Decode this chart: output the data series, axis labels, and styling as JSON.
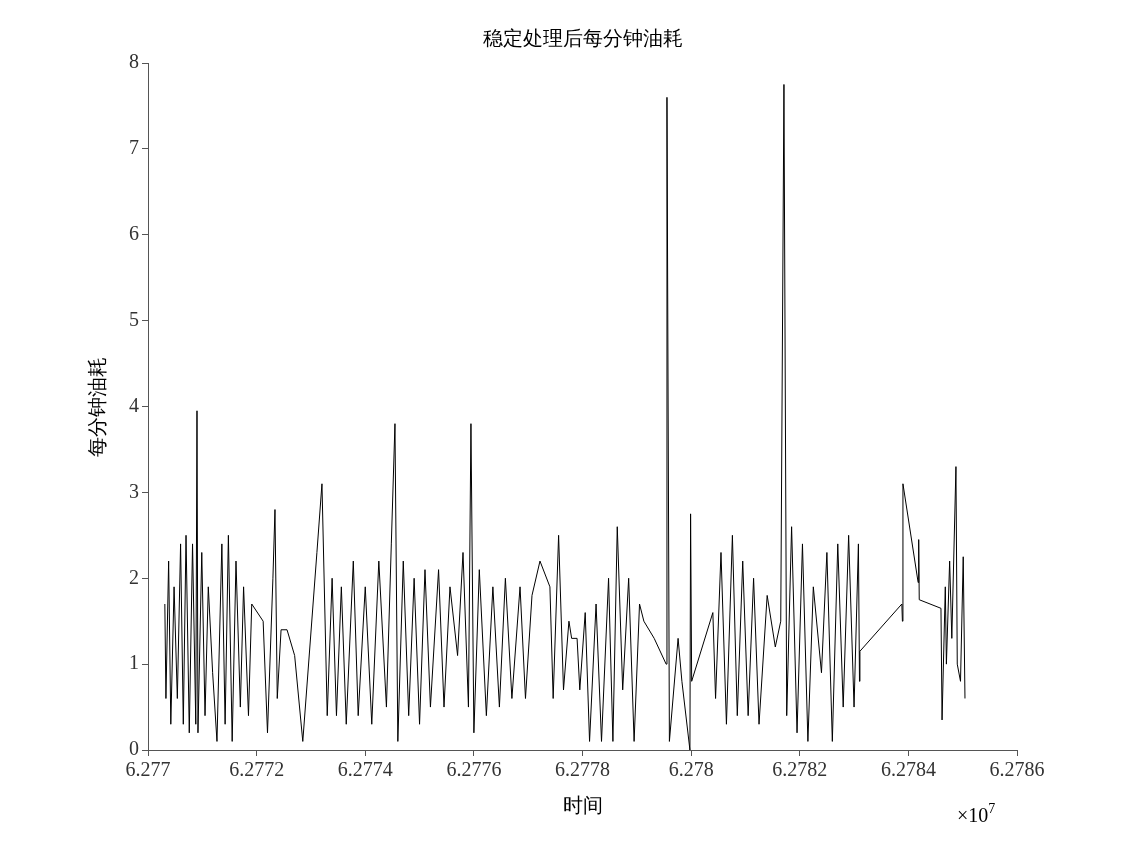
{
  "chart_data": {
    "type": "line",
    "title": "稳定处理后每分钟油耗",
    "xlabel": "时间",
    "ylabel": "每分钟油耗",
    "color": "#000000",
    "x": [
      6.277031,
      6.277033,
      6.277038,
      6.277042,
      6.277048,
      6.277054,
      6.27706,
      6.277065,
      6.27707,
      6.277076,
      6.277082,
      6.277088,
      6.2770902,
      6.277092,
      6.277099,
      6.277105,
      6.277111,
      6.277119,
      6.277127,
      6.277136,
      6.277142,
      6.277148,
      6.277155,
      6.277162,
      6.27717,
      6.277176,
      6.277185,
      6.277191,
      6.277212,
      6.27722,
      6.27723,
      6.2772338,
      6.277238,
      6.277245,
      6.277256,
      6.27727,
      6.277285,
      6.277311,
      6.2773203,
      6.27733,
      6.277339,
      6.277347,
      6.277356,
      6.277365,
      6.277378,
      6.277387,
      6.2774,
      6.277412,
      6.277425,
      6.277439,
      6.277448,
      6.2774547,
      6.27746,
      6.27747,
      6.27748,
      6.27749,
      6.2775,
      6.27751,
      6.27752,
      6.277535,
      6.277545,
      6.277556,
      6.27757,
      6.27758,
      6.27759,
      6.2775946,
      6.2776,
      6.27761,
      6.277623,
      6.277635,
      6.277647,
      6.277658,
      6.27767,
      6.277685,
      6.277695,
      6.277707,
      6.2777217,
      6.27774,
      6.277746,
      6.277756,
      6.277765,
      6.277775,
      6.27778,
      6.27779,
      6.277795,
      6.277805,
      6.277813,
      6.277825,
      6.277835,
      6.277848,
      6.277856,
      6.277864,
      6.277874,
      6.277885,
      6.277895,
      6.277905,
      6.277913,
      6.277932,
      6.277954,
      6.2779555,
      6.27796,
      6.277976,
      6.277983,
      6.2779978,
      6.277999,
      6.278001,
      6.27804,
      6.278045,
      6.278055,
      6.278065,
      6.278076,
      6.278085,
      6.278095,
      6.278105,
      6.278115,
      6.278125,
      6.27814,
      6.278155,
      6.278165,
      6.2781709,
      6.278176,
      6.278185,
      6.278195,
      6.278205,
      6.278215,
      6.278225,
      6.27824,
      6.27825,
      6.27826,
      6.27827,
      6.27828,
      6.27829,
      6.2783,
      6.278308,
      6.27831,
      6.2783108,
      6.278388,
      6.278389,
      6.27839,
      6.278418,
      6.278419,
      6.27842,
      6.27846,
      6.278462,
      6.278468,
      6.27847,
      6.278476,
      6.27848,
      6.2784876,
      6.27849,
      6.278496,
      6.278501,
      6.2785042
    ],
    "values": [
      1.7,
      0.6,
      2.2,
      0.3,
      1.9,
      0.6,
      2.4,
      0.3,
      2.5,
      0.2,
      2.4,
      0.3,
      3.95,
      0.2,
      2.3,
      0.4,
      1.9,
      0.9,
      0.1,
      2.4,
      0.3,
      2.5,
      0.1,
      2.2,
      0.5,
      1.9,
      0.4,
      1.7,
      1.5,
      0.2,
      2.0,
      2.8,
      0.6,
      1.4,
      1.4,
      1.1,
      0.1,
      2.3,
      3.1,
      0.4,
      2.0,
      0.4,
      1.9,
      0.3,
      2.2,
      0.4,
      1.9,
      0.3,
      2.2,
      0.5,
      2.4,
      3.8,
      0.1,
      2.2,
      0.4,
      2.0,
      0.3,
      2.1,
      0.5,
      2.1,
      0.5,
      1.9,
      1.1,
      2.3,
      0.5,
      3.8,
      0.2,
      2.1,
      0.4,
      1.9,
      0.5,
      2.0,
      0.6,
      1.9,
      0.6,
      1.8,
      2.2,
      1.9,
      0.6,
      2.5,
      0.7,
      1.5,
      1.3,
      1.3,
      0.7,
      1.6,
      0.1,
      1.7,
      0.1,
      2.0,
      0.1,
      2.6,
      0.7,
      2.0,
      0.1,
      1.7,
      1.5,
      1.3,
      1.0,
      7.6,
      0.1,
      1.3,
      0.8,
      0,
      2.75,
      0.8,
      1.6,
      0.6,
      2.3,
      0.3,
      2.5,
      0.4,
      2.2,
      0.4,
      2.0,
      0.3,
      1.8,
      1.2,
      1.5,
      7.75,
      0.4,
      2.6,
      0.2,
      2.4,
      0.1,
      1.9,
      0.9,
      2.3,
      0.1,
      2.4,
      0.5,
      2.5,
      0.5,
      2.4,
      0.8,
      1.15,
      1.7,
      1.5,
      3.1,
      1.95,
      2.45,
      1.75,
      1.65,
      0.35,
      1.9,
      1.0,
      2.2,
      1.3,
      3.3,
      1.0,
      0.8,
      2.25,
      0.6
    ],
    "xlim": [
      6.277,
      6.2786
    ],
    "xticks": [
      6.277,
      6.2772,
      6.2774,
      6.2776,
      6.2778,
      6.278,
      6.2782,
      6.2784,
      6.2786
    ],
    "ylim": [
      0,
      8
    ],
    "yticks": [
      0,
      1,
      2,
      3,
      4,
      5,
      6,
      7,
      8
    ],
    "annotations": [
      "×10$^{7}$"
    ]
  }
}
